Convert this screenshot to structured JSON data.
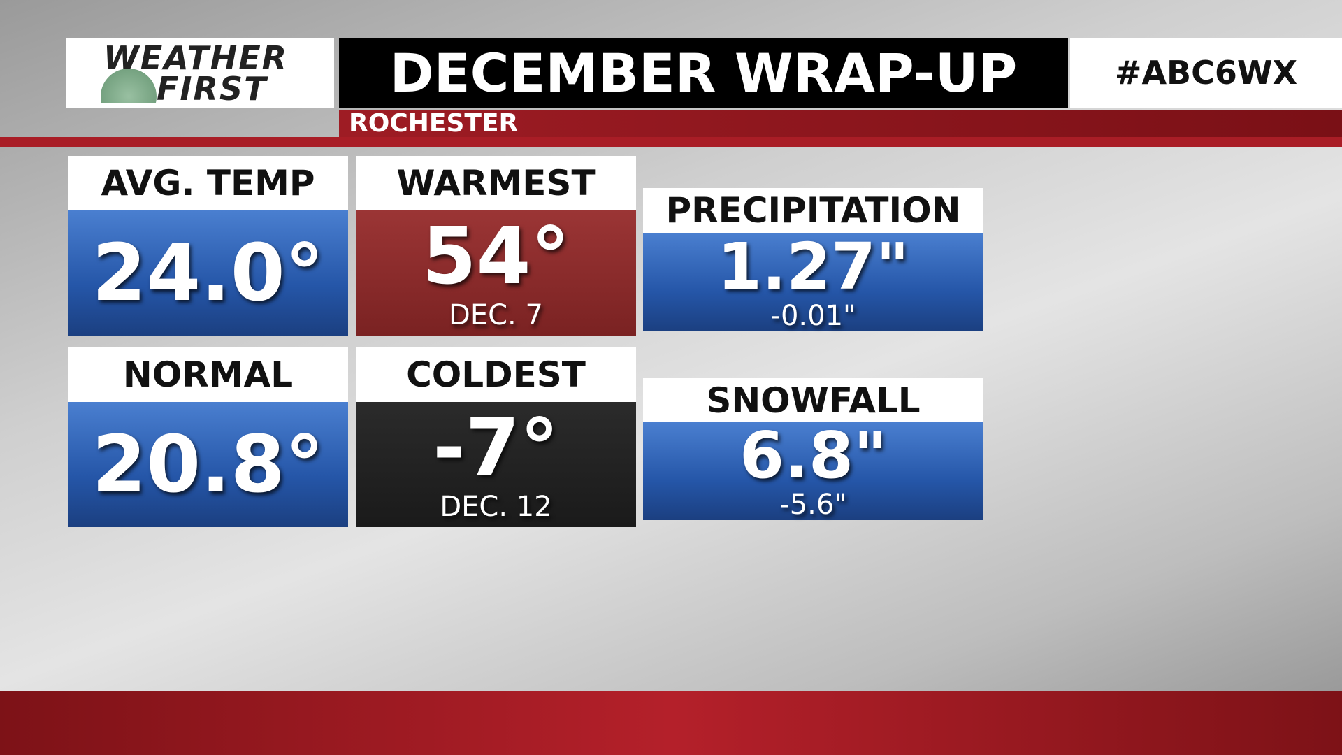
{
  "header": {
    "logo_line1": "WEATHER",
    "logo_line2": "FIRST",
    "title": "DECEMBER WRAP-UP",
    "hashtag": "#ABC6WX",
    "location": "ROCHESTER"
  },
  "tiles": [
    {
      "label": "AVG. TEMP",
      "value": "24.0°"
    },
    {
      "label": "WARMEST",
      "value": "54°",
      "note": "DEC. 7"
    },
    {
      "label": "PRECIPITATION",
      "value": "1.27\"",
      "note": "-0.01\""
    },
    {
      "label": "NORMAL",
      "value": "20.8°"
    },
    {
      "label": "COLDEST",
      "value": "-7°",
      "note": "DEC. 12"
    },
    {
      "label": "SNOWFALL",
      "value": "6.8\"",
      "note": "-5.6\""
    }
  ]
}
